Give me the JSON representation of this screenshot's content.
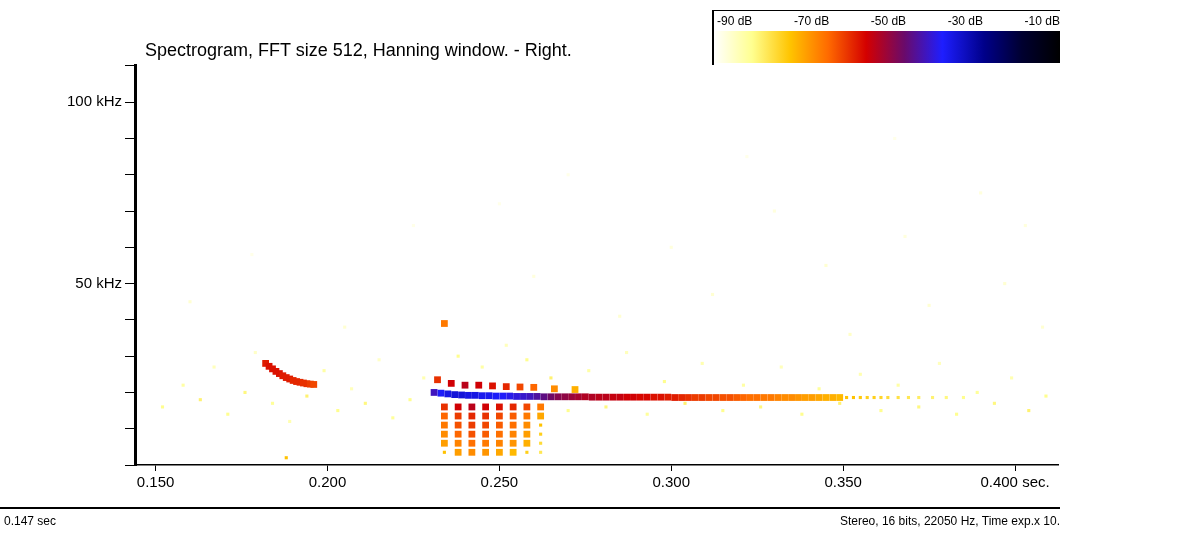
{
  "chart_data": {
    "type": "spectrogram",
    "title": "Spectrogram, FFT size 512, Hanning window. - Right.",
    "footer": {
      "left": "0.147 sec",
      "right": "Stereo, 16 bits, 22050 Hz, Time exp.x 10."
    },
    "xlim": [
      0.144,
      0.4125
    ],
    "xticks": [
      {
        "value": 0.15,
        "label": "0.150"
      },
      {
        "value": 0.2,
        "label": "0.200"
      },
      {
        "value": 0.25,
        "label": "0.250"
      },
      {
        "value": 0.3,
        "label": "0.300"
      },
      {
        "value": 0.35,
        "label": "0.350"
      },
      {
        "value": 0.4,
        "label": "0.400 sec."
      }
    ],
    "ylim": [
      0,
      110.25
    ],
    "yticks": [
      {
        "value": 0,
        "label": null
      },
      {
        "value": 10,
        "label": null
      },
      {
        "value": 20,
        "label": null
      },
      {
        "value": 30,
        "label": null
      },
      {
        "value": 40,
        "label": null
      },
      {
        "value": 50,
        "label": "50 kHz"
      },
      {
        "value": 60,
        "label": null
      },
      {
        "value": 70,
        "label": null
      },
      {
        "value": 80,
        "label": null
      },
      {
        "value": 90,
        "label": null
      },
      {
        "value": 100,
        "label": "100 kHz"
      },
      {
        "value": 110,
        "label": null
      }
    ],
    "grid": false,
    "colorbar": {
      "range": [
        -90,
        0
      ],
      "ticks": [
        {
          "value": -90,
          "label": "-90 dB"
        },
        {
          "value": -70,
          "label": "-70 dB"
        },
        {
          "value": -50,
          "label": "-50 dB"
        },
        {
          "value": -30,
          "label": "-30 dB"
        },
        {
          "value": -10,
          "label": "-10 dB"
        }
      ]
    },
    "cells": [
      [
        0.152,
        16,
        -80
      ],
      [
        0.158,
        22,
        -82
      ],
      [
        0.163,
        18,
        -78
      ],
      [
        0.167,
        27,
        -84
      ],
      [
        0.171,
        14,
        -80
      ],
      [
        0.176,
        20,
        -79
      ],
      [
        0.179,
        31,
        -85
      ],
      [
        0.184,
        17,
        -81
      ],
      [
        0.189,
        12,
        -83
      ],
      [
        0.194,
        19,
        -78
      ],
      [
        0.199,
        26,
        -82
      ],
      [
        0.203,
        15,
        -80
      ],
      [
        0.207,
        21,
        -84
      ],
      [
        0.211,
        17,
        -79
      ],
      [
        0.215,
        29,
        -85
      ],
      [
        0.219,
        13,
        -81
      ],
      [
        0.224,
        18,
        -80
      ],
      [
        0.228,
        24,
        -83
      ],
      [
        0.238,
        30,
        -80
      ],
      [
        0.245,
        27,
        -82
      ],
      [
        0.252,
        33,
        -84
      ],
      [
        0.258,
        29,
        -80
      ],
      [
        0.265,
        24,
        -78
      ],
      [
        0.27,
        15,
        -80
      ],
      [
        0.276,
        26,
        -82
      ],
      [
        0.281,
        16,
        -79
      ],
      [
        0.287,
        31,
        -84
      ],
      [
        0.293,
        14,
        -81
      ],
      [
        0.298,
        23,
        -80
      ],
      [
        0.304,
        17,
        -78
      ],
      [
        0.309,
        28,
        -83
      ],
      [
        0.315,
        15,
        -80
      ],
      [
        0.321,
        22,
        -82
      ],
      [
        0.326,
        16,
        -79
      ],
      [
        0.332,
        27,
        -84
      ],
      [
        0.338,
        14,
        -80
      ],
      [
        0.343,
        21,
        -81
      ],
      [
        0.349,
        17,
        -78
      ],
      [
        0.355,
        25,
        -83
      ],
      [
        0.361,
        15,
        -80
      ],
      [
        0.366,
        22,
        -82
      ],
      [
        0.372,
        16,
        -79
      ],
      [
        0.378,
        28,
        -84
      ],
      [
        0.383,
        14,
        -80
      ],
      [
        0.389,
        20,
        -81
      ],
      [
        0.394,
        17,
        -79
      ],
      [
        0.399,
        24,
        -83
      ],
      [
        0.404,
        15,
        -78
      ],
      [
        0.409,
        19,
        -80
      ],
      [
        0.16,
        45,
        -86
      ],
      [
        0.205,
        38,
        -86
      ],
      [
        0.26,
        52,
        -87
      ],
      [
        0.285,
        41,
        -86
      ],
      [
        0.3,
        60,
        -87
      ],
      [
        0.312,
        47,
        -86
      ],
      [
        0.33,
        70,
        -87
      ],
      [
        0.345,
        55,
        -86
      ],
      [
        0.352,
        36,
        -85
      ],
      [
        0.368,
        63,
        -87
      ],
      [
        0.375,
        44,
        -86
      ],
      [
        0.39,
        75,
        -87
      ],
      [
        0.397,
        50,
        -86
      ],
      [
        0.403,
        66,
        -87
      ],
      [
        0.408,
        38,
        -86
      ],
      [
        0.27,
        80,
        -88
      ],
      [
        0.225,
        66,
        -88
      ],
      [
        0.178,
        58,
        -88
      ],
      [
        0.322,
        85,
        -88
      ],
      [
        0.365,
        90,
        -88
      ],
      [
        0.25,
        72,
        -88
      ],
      [
        0.188,
        2,
        -70
      ],
      [
        0.182,
        28.0,
        -53
      ],
      [
        0.183,
        27.2,
        -52
      ],
      [
        0.184,
        26.5,
        -52
      ],
      [
        0.185,
        25.8,
        -52
      ],
      [
        0.186,
        25.2,
        -52
      ],
      [
        0.187,
        24.6,
        -53
      ],
      [
        0.188,
        24.1,
        -53
      ],
      [
        0.189,
        23.7,
        -53
      ],
      [
        0.19,
        23.3,
        -54
      ],
      [
        0.191,
        23.0,
        -54
      ],
      [
        0.192,
        22.8,
        -54
      ],
      [
        0.193,
        22.6,
        -55
      ],
      [
        0.194,
        22.4,
        -55
      ],
      [
        0.195,
        22.3,
        -56
      ],
      [
        0.196,
        22.2,
        -57
      ],
      [
        0.234,
        16,
        -55
      ],
      [
        0.234,
        13.5,
        -60
      ],
      [
        0.234,
        11,
        -62
      ],
      [
        0.234,
        8.5,
        -64
      ],
      [
        0.234,
        6,
        -66
      ],
      [
        0.234,
        3.5,
        -70
      ],
      [
        0.238,
        16,
        -50
      ],
      [
        0.238,
        13.5,
        -56
      ],
      [
        0.238,
        11,
        -58
      ],
      [
        0.238,
        8.5,
        -60
      ],
      [
        0.238,
        6,
        -63
      ],
      [
        0.238,
        3.5,
        -66
      ],
      [
        0.242,
        16,
        -48
      ],
      [
        0.242,
        13.5,
        -54
      ],
      [
        0.242,
        11,
        -56
      ],
      [
        0.242,
        8.5,
        -58
      ],
      [
        0.242,
        6,
        -61
      ],
      [
        0.242,
        3.5,
        -64
      ],
      [
        0.246,
        16,
        -50
      ],
      [
        0.246,
        13.5,
        -55
      ],
      [
        0.246,
        11,
        -57
      ],
      [
        0.246,
        8.5,
        -59
      ],
      [
        0.246,
        6,
        -62
      ],
      [
        0.246,
        3.5,
        -65
      ],
      [
        0.25,
        16,
        -52
      ],
      [
        0.25,
        13.5,
        -57
      ],
      [
        0.25,
        11,
        -59
      ],
      [
        0.25,
        8.5,
        -61
      ],
      [
        0.25,
        6,
        -63
      ],
      [
        0.25,
        3.5,
        -67
      ],
      [
        0.254,
        16,
        -54
      ],
      [
        0.254,
        13.5,
        -59
      ],
      [
        0.254,
        11,
        -61
      ],
      [
        0.254,
        8.5,
        -63
      ],
      [
        0.254,
        6,
        -65
      ],
      [
        0.254,
        3.5,
        -69
      ],
      [
        0.258,
        16,
        -57
      ],
      [
        0.258,
        13.5,
        -62
      ],
      [
        0.258,
        11,
        -64
      ],
      [
        0.258,
        8.5,
        -66
      ],
      [
        0.258,
        6,
        -68
      ],
      [
        0.258,
        3.5,
        -72
      ],
      [
        0.262,
        16,
        -62
      ],
      [
        0.262,
        13.5,
        -67
      ],
      [
        0.262,
        11,
        -70
      ],
      [
        0.262,
        8.5,
        -72
      ],
      [
        0.262,
        6,
        -74
      ],
      [
        0.262,
        3.5,
        -76
      ],
      [
        0.232,
        23.5,
        -55
      ],
      [
        0.236,
        22.5,
        -50
      ],
      [
        0.24,
        22,
        -48
      ],
      [
        0.244,
        22,
        -50
      ],
      [
        0.248,
        21.8,
        -52
      ],
      [
        0.252,
        21.6,
        -54
      ],
      [
        0.256,
        21.5,
        -57
      ],
      [
        0.26,
        21.4,
        -60
      ],
      [
        0.266,
        21,
        -64
      ],
      [
        0.272,
        20.8,
        -68
      ],
      [
        0.234,
        39,
        -62
      ],
      [
        0.231,
        20.0,
        -35
      ],
      [
        0.233,
        19.8,
        -30
      ],
      [
        0.235,
        19.6,
        -28
      ],
      [
        0.237,
        19.4,
        -27
      ],
      [
        0.239,
        19.3,
        -27
      ],
      [
        0.241,
        19.2,
        -28
      ],
      [
        0.243,
        19.2,
        -28
      ],
      [
        0.245,
        19.1,
        -29
      ],
      [
        0.247,
        19.1,
        -29
      ],
      [
        0.249,
        19.0,
        -30
      ],
      [
        0.251,
        19.0,
        -31
      ],
      [
        0.253,
        19.0,
        -32
      ],
      [
        0.255,
        18.9,
        -33
      ],
      [
        0.257,
        18.9,
        -34
      ],
      [
        0.259,
        18.9,
        -35
      ],
      [
        0.261,
        18.9,
        -37
      ],
      [
        0.263,
        18.8,
        -39
      ],
      [
        0.265,
        18.8,
        -41
      ],
      [
        0.267,
        18.8,
        -43
      ],
      [
        0.269,
        18.8,
        -44
      ],
      [
        0.271,
        18.8,
        -45
      ],
      [
        0.273,
        18.8,
        -46
      ],
      [
        0.275,
        18.8,
        -47
      ],
      [
        0.277,
        18.7,
        -47
      ],
      [
        0.279,
        18.7,
        -48
      ],
      [
        0.281,
        18.7,
        -48
      ],
      [
        0.283,
        18.7,
        -49
      ],
      [
        0.285,
        18.7,
        -49
      ],
      [
        0.287,
        18.7,
        -50
      ],
      [
        0.289,
        18.7,
        -50
      ],
      [
        0.291,
        18.7,
        -51
      ],
      [
        0.293,
        18.7,
        -51
      ],
      [
        0.295,
        18.7,
        -52
      ],
      [
        0.297,
        18.7,
        -52
      ],
      [
        0.299,
        18.7,
        -53
      ],
      [
        0.301,
        18.6,
        -53
      ],
      [
        0.303,
        18.6,
        -54
      ],
      [
        0.305,
        18.6,
        -55
      ],
      [
        0.307,
        18.6,
        -56
      ],
      [
        0.309,
        18.6,
        -56
      ],
      [
        0.311,
        18.6,
        -57
      ],
      [
        0.313,
        18.6,
        -57
      ],
      [
        0.315,
        18.6,
        -58
      ],
      [
        0.317,
        18.6,
        -58
      ],
      [
        0.319,
        18.6,
        -59
      ],
      [
        0.321,
        18.6,
        -60
      ],
      [
        0.323,
        18.6,
        -61
      ],
      [
        0.325,
        18.6,
        -61
      ],
      [
        0.327,
        18.6,
        -62
      ],
      [
        0.329,
        18.6,
        -62
      ],
      [
        0.331,
        18.6,
        -63
      ],
      [
        0.333,
        18.6,
        -64
      ],
      [
        0.335,
        18.6,
        -64
      ],
      [
        0.337,
        18.6,
        -65
      ],
      [
        0.339,
        18.6,
        -66
      ],
      [
        0.341,
        18.6,
        -66
      ],
      [
        0.343,
        18.6,
        -67
      ],
      [
        0.345,
        18.6,
        -68
      ],
      [
        0.347,
        18.6,
        -68
      ],
      [
        0.349,
        18.6,
        -69
      ],
      [
        0.351,
        18.6,
        -70
      ],
      [
        0.353,
        18.6,
        -70
      ],
      [
        0.355,
        18.6,
        -71
      ],
      [
        0.357,
        18.6,
        -72
      ],
      [
        0.359,
        18.6,
        -72
      ],
      [
        0.361,
        18.6,
        -73
      ],
      [
        0.363,
        18.6,
        -74
      ],
      [
        0.366,
        18.6,
        -75
      ],
      [
        0.369,
        18.6,
        -76
      ],
      [
        0.372,
        18.6,
        -77
      ],
      [
        0.376,
        18.6,
        -78
      ],
      [
        0.38,
        18.6,
        -79
      ],
      [
        0.385,
        18.6,
        -80
      ]
    ]
  }
}
